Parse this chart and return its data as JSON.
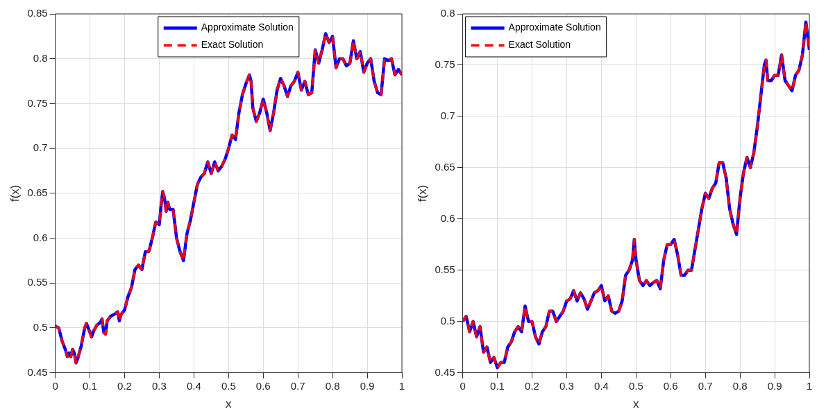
{
  "chart_data": [
    {
      "type": "line",
      "xlabel": "x",
      "ylabel": "f(x)",
      "xlim": [
        0,
        1
      ],
      "xticks": [
        0,
        0.1,
        0.2,
        0.3,
        0.4,
        0.5,
        0.6,
        0.7,
        0.8,
        0.9,
        1
      ],
      "ylim": [
        0.45,
        0.85
      ],
      "yticks": [
        0.45,
        0.5,
        0.55,
        0.6,
        0.65,
        0.7,
        0.75,
        0.8,
        0.85
      ],
      "grid": true,
      "legend": "top",
      "marker": "none",
      "x": [
        0,
        0.01,
        0.02,
        0.03,
        0.035,
        0.04,
        0.045,
        0.05,
        0.055,
        0.06,
        0.065,
        0.075,
        0.085,
        0.09,
        0.1,
        0.105,
        0.11,
        0.12,
        0.13,
        0.135,
        0.14,
        0.145,
        0.15,
        0.16,
        0.17,
        0.18,
        0.185,
        0.19,
        0.2,
        0.21,
        0.22,
        0.23,
        0.24,
        0.25,
        0.26,
        0.27,
        0.28,
        0.29,
        0.3,
        0.305,
        0.31,
        0.315,
        0.32,
        0.325,
        0.33,
        0.34,
        0.35,
        0.36,
        0.37,
        0.38,
        0.39,
        0.4,
        0.41,
        0.42,
        0.43,
        0.44,
        0.45,
        0.46,
        0.47,
        0.48,
        0.49,
        0.5,
        0.51,
        0.52,
        0.53,
        0.54,
        0.55,
        0.56,
        0.565,
        0.57,
        0.58,
        0.59,
        0.6,
        0.61,
        0.62,
        0.63,
        0.64,
        0.65,
        0.66,
        0.67,
        0.68,
        0.69,
        0.7,
        0.71,
        0.72,
        0.73,
        0.74,
        0.75,
        0.76,
        0.77,
        0.78,
        0.79,
        0.8,
        0.81,
        0.82,
        0.83,
        0.84,
        0.85,
        0.86,
        0.87,
        0.88,
        0.89,
        0.9,
        0.91,
        0.92,
        0.93,
        0.94,
        0.95,
        0.96,
        0.97,
        0.98,
        0.99,
        1
      ],
      "series": [
        {
          "name": "Approximate Solution",
          "color": "#0000ff",
          "line_style": "solid",
          "values": [
            0.502,
            0.5,
            0.485,
            0.475,
            0.468,
            0.472,
            0.468,
            0.476,
            0.472,
            0.461,
            0.466,
            0.48,
            0.5,
            0.505,
            0.495,
            0.49,
            0.496,
            0.503,
            0.506,
            0.51,
            0.495,
            0.493,
            0.508,
            0.513,
            0.515,
            0.518,
            0.508,
            0.515,
            0.52,
            0.535,
            0.545,
            0.565,
            0.57,
            0.565,
            0.585,
            0.585,
            0.6,
            0.618,
            0.615,
            0.635,
            0.652,
            0.645,
            0.63,
            0.64,
            0.632,
            0.632,
            0.6,
            0.585,
            0.575,
            0.605,
            0.62,
            0.64,
            0.66,
            0.668,
            0.672,
            0.685,
            0.672,
            0.685,
            0.675,
            0.68,
            0.688,
            0.7,
            0.715,
            0.71,
            0.74,
            0.76,
            0.772,
            0.782,
            0.775,
            0.745,
            0.73,
            0.74,
            0.755,
            0.74,
            0.72,
            0.74,
            0.765,
            0.778,
            0.77,
            0.758,
            0.77,
            0.775,
            0.785,
            0.765,
            0.775,
            0.76,
            0.762,
            0.81,
            0.795,
            0.81,
            0.828,
            0.818,
            0.825,
            0.79,
            0.8,
            0.8,
            0.792,
            0.795,
            0.82,
            0.8,
            0.808,
            0.785,
            0.795,
            0.8,
            0.775,
            0.762,
            0.76,
            0.8,
            0.798,
            0.8,
            0.782,
            0.788,
            0.782
          ]
        },
        {
          "name": "Exact Solution",
          "color": "#ff0000",
          "line_style": "dashed",
          "values": [
            0.502,
            0.5,
            0.485,
            0.475,
            0.468,
            0.472,
            0.468,
            0.476,
            0.472,
            0.461,
            0.466,
            0.48,
            0.5,
            0.505,
            0.495,
            0.49,
            0.496,
            0.503,
            0.506,
            0.51,
            0.495,
            0.493,
            0.508,
            0.513,
            0.515,
            0.518,
            0.508,
            0.515,
            0.52,
            0.535,
            0.545,
            0.565,
            0.57,
            0.565,
            0.585,
            0.585,
            0.6,
            0.618,
            0.615,
            0.635,
            0.652,
            0.645,
            0.63,
            0.64,
            0.632,
            0.632,
            0.6,
            0.585,
            0.575,
            0.605,
            0.62,
            0.64,
            0.66,
            0.668,
            0.672,
            0.685,
            0.672,
            0.685,
            0.675,
            0.68,
            0.688,
            0.7,
            0.715,
            0.71,
            0.74,
            0.76,
            0.772,
            0.782,
            0.775,
            0.745,
            0.73,
            0.74,
            0.755,
            0.74,
            0.72,
            0.74,
            0.765,
            0.778,
            0.77,
            0.758,
            0.77,
            0.775,
            0.785,
            0.765,
            0.775,
            0.76,
            0.762,
            0.81,
            0.795,
            0.81,
            0.828,
            0.818,
            0.825,
            0.79,
            0.8,
            0.8,
            0.792,
            0.795,
            0.82,
            0.8,
            0.808,
            0.785,
            0.795,
            0.8,
            0.775,
            0.762,
            0.76,
            0.8,
            0.798,
            0.8,
            0.782,
            0.788,
            0.782
          ]
        }
      ]
    },
    {
      "type": "line",
      "xlabel": "x",
      "ylabel": "f(x)",
      "xlim": [
        0,
        1
      ],
      "xticks": [
        0,
        0.1,
        0.2,
        0.3,
        0.4,
        0.5,
        0.6,
        0.7,
        0.8,
        0.9,
        1
      ],
      "ylim": [
        0.45,
        0.8
      ],
      "yticks": [
        0.45,
        0.5,
        0.55,
        0.6,
        0.65,
        0.7,
        0.75,
        0.8
      ],
      "grid": true,
      "legend": "top left",
      "marker": "none",
      "x": [
        0,
        0.01,
        0.02,
        0.03,
        0.04,
        0.05,
        0.06,
        0.07,
        0.08,
        0.09,
        0.1,
        0.11,
        0.12,
        0.13,
        0.14,
        0.15,
        0.16,
        0.17,
        0.18,
        0.19,
        0.2,
        0.21,
        0.22,
        0.23,
        0.24,
        0.25,
        0.26,
        0.27,
        0.28,
        0.29,
        0.3,
        0.31,
        0.32,
        0.33,
        0.34,
        0.35,
        0.36,
        0.37,
        0.38,
        0.39,
        0.4,
        0.41,
        0.42,
        0.43,
        0.44,
        0.45,
        0.46,
        0.47,
        0.48,
        0.49,
        0.495,
        0.5,
        0.51,
        0.52,
        0.53,
        0.54,
        0.55,
        0.56,
        0.57,
        0.58,
        0.59,
        0.6,
        0.61,
        0.62,
        0.63,
        0.64,
        0.65,
        0.66,
        0.67,
        0.68,
        0.69,
        0.7,
        0.71,
        0.72,
        0.73,
        0.74,
        0.75,
        0.76,
        0.77,
        0.78,
        0.79,
        0.8,
        0.81,
        0.82,
        0.83,
        0.84,
        0.85,
        0.86,
        0.87,
        0.875,
        0.88,
        0.89,
        0.9,
        0.91,
        0.92,
        0.93,
        0.94,
        0.95,
        0.96,
        0.97,
        0.98,
        0.99,
        1
      ],
      "series": [
        {
          "name": "Approximate Solution",
          "color": "#0000ff",
          "line_style": "solid",
          "values": [
            0.5,
            0.505,
            0.49,
            0.5,
            0.485,
            0.495,
            0.47,
            0.475,
            0.46,
            0.465,
            0.455,
            0.46,
            0.46,
            0.475,
            0.48,
            0.49,
            0.495,
            0.49,
            0.515,
            0.5,
            0.5,
            0.485,
            0.478,
            0.49,
            0.495,
            0.51,
            0.51,
            0.5,
            0.505,
            0.51,
            0.52,
            0.522,
            0.53,
            0.52,
            0.528,
            0.522,
            0.512,
            0.52,
            0.528,
            0.53,
            0.535,
            0.52,
            0.525,
            0.51,
            0.508,
            0.51,
            0.52,
            0.545,
            0.55,
            0.56,
            0.58,
            0.56,
            0.54,
            0.535,
            0.54,
            0.535,
            0.538,
            0.54,
            0.532,
            0.56,
            0.575,
            0.575,
            0.58,
            0.565,
            0.545,
            0.545,
            0.55,
            0.55,
            0.57,
            0.59,
            0.61,
            0.625,
            0.62,
            0.63,
            0.635,
            0.655,
            0.655,
            0.64,
            0.61,
            0.595,
            0.585,
            0.62,
            0.645,
            0.66,
            0.65,
            0.665,
            0.69,
            0.72,
            0.75,
            0.755,
            0.735,
            0.735,
            0.74,
            0.74,
            0.76,
            0.735,
            0.73,
            0.725,
            0.74,
            0.745,
            0.76,
            0.792,
            0.765
          ]
        },
        {
          "name": "Exact Solution",
          "color": "#ff0000",
          "line_style": "dashed",
          "values": [
            0.5,
            0.505,
            0.49,
            0.5,
            0.485,
            0.495,
            0.47,
            0.475,
            0.46,
            0.465,
            0.455,
            0.46,
            0.46,
            0.475,
            0.48,
            0.49,
            0.495,
            0.49,
            0.515,
            0.5,
            0.5,
            0.485,
            0.478,
            0.49,
            0.495,
            0.51,
            0.51,
            0.5,
            0.505,
            0.51,
            0.52,
            0.522,
            0.53,
            0.52,
            0.528,
            0.522,
            0.512,
            0.52,
            0.528,
            0.53,
            0.535,
            0.52,
            0.525,
            0.51,
            0.508,
            0.51,
            0.52,
            0.545,
            0.55,
            0.56,
            0.58,
            0.56,
            0.54,
            0.535,
            0.54,
            0.535,
            0.538,
            0.54,
            0.532,
            0.56,
            0.575,
            0.575,
            0.58,
            0.565,
            0.545,
            0.545,
            0.55,
            0.55,
            0.57,
            0.59,
            0.61,
            0.625,
            0.62,
            0.63,
            0.635,
            0.655,
            0.655,
            0.64,
            0.61,
            0.595,
            0.585,
            0.62,
            0.645,
            0.66,
            0.65,
            0.665,
            0.69,
            0.72,
            0.75,
            0.755,
            0.735,
            0.735,
            0.74,
            0.74,
            0.76,
            0.735,
            0.73,
            0.725,
            0.74,
            0.745,
            0.76,
            0.792,
            0.765
          ]
        }
      ]
    }
  ]
}
